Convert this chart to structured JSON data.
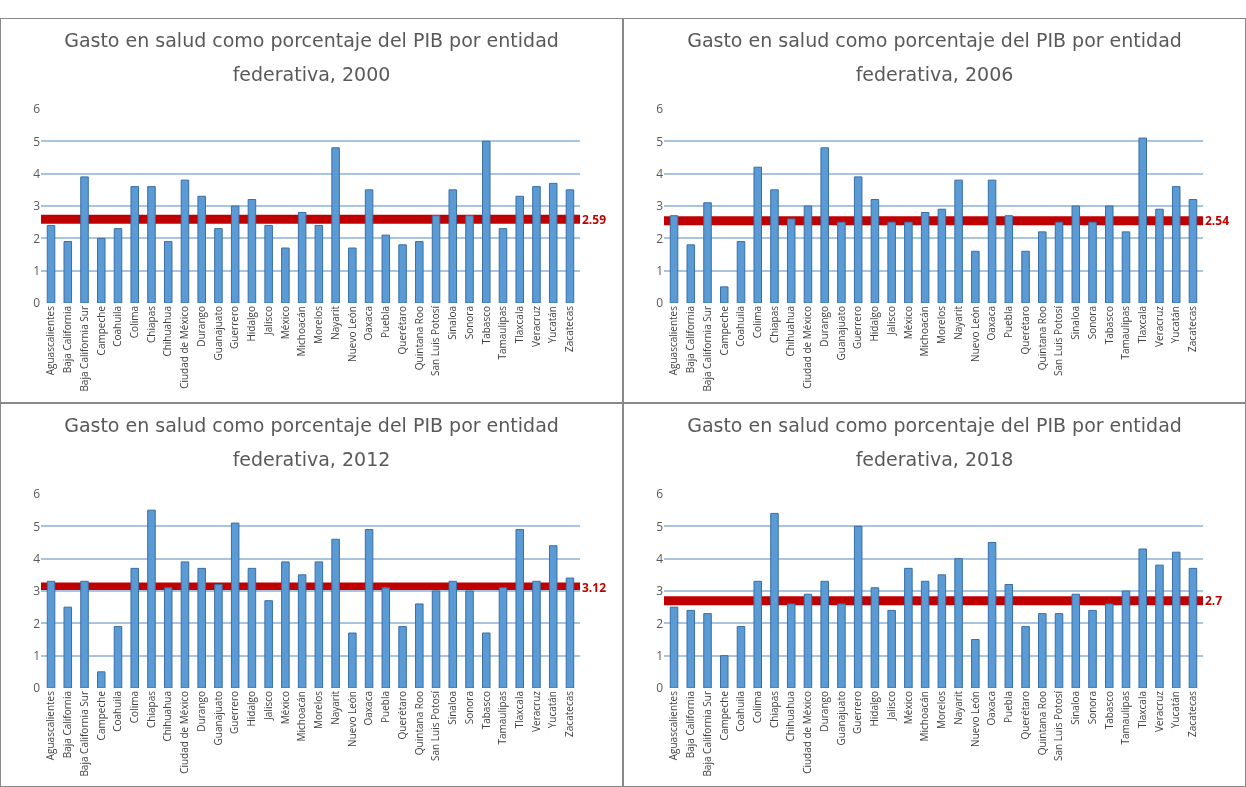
{
  "chart_data": [
    {
      "type": "bar",
      "title": "Gasto en salud como porcentaje del PIB por entidad federativa, 2000",
      "categories": [
        "Aguascalientes",
        "Baja California",
        "Baja California Sur",
        "Campeche",
        "Coahuila",
        "Colima",
        "Chiapas",
        "Chihuahua",
        "Ciudad de México",
        "Durango",
        "Guanajuato",
        "Guerrero",
        "Hidalgo",
        "Jalisco",
        "México",
        "Michoacán",
        "Morelos",
        "Nayarit",
        "Nuevo León",
        "Oaxaca",
        "Puebla",
        "Querétaro",
        "Quintana Roo",
        "San Luis Potosí",
        "Sinaloa",
        "Sonora",
        "Tabasco",
        "Tamaulipas",
        "Tlaxcala",
        "Veracruz",
        "Yucatán",
        "Zacatecas"
      ],
      "values": [
        2.4,
        1.9,
        3.9,
        2.0,
        2.3,
        3.6,
        3.6,
        1.9,
        3.8,
        3.3,
        2.3,
        3.0,
        3.2,
        2.4,
        1.7,
        2.8,
        2.4,
        4.8,
        1.7,
        3.5,
        2.1,
        1.8,
        1.9,
        2.7,
        3.5,
        2.7,
        5.0,
        2.3,
        3.3,
        3.6,
        3.7,
        3.5
      ],
      "color": "#5b9bd5",
      "ylim": [
        0,
        6
      ],
      "yticks": [
        0,
        1,
        2,
        3,
        4,
        5,
        6
      ],
      "grid": "y",
      "ref_lines": [
        {
          "axis": "y",
          "value": 2.59,
          "label": "2.59",
          "color": "#c00000"
        }
      ]
    },
    {
      "type": "bar",
      "title": "Gasto en salud como porcentaje del PIB por entidad federativa, 2006",
      "categories": [
        "Aguascalientes",
        "Baja California",
        "Baja California Sur",
        "Campeche",
        "Coahuila",
        "Colima",
        "Chiapas",
        "Chihuahua",
        "Ciudad de México",
        "Durango",
        "Guanajuato",
        "Guerrero",
        "Hidalgo",
        "Jalisco",
        "México",
        "Michoacán",
        "Morelos",
        "Nayarit",
        "Nuevo León",
        "Oaxaca",
        "Puebla",
        "Querétaro",
        "Quintana Roo",
        "San Luis Potosí",
        "Sinaloa",
        "Sonora",
        "Tabasco",
        "Tamaulipas",
        "Tlaxcala",
        "Veracruz",
        "Yucatán",
        "Zacatecas"
      ],
      "values": [
        2.7,
        1.8,
        3.1,
        0.5,
        1.9,
        4.2,
        3.5,
        2.6,
        3.0,
        4.8,
        2.5,
        3.9,
        3.2,
        2.5,
        2.5,
        2.8,
        2.9,
        3.8,
        1.6,
        3.8,
        2.7,
        1.6,
        2.2,
        2.5,
        3.0,
        2.5,
        3.0,
        2.2,
        5.1,
        2.9,
        3.6,
        3.2
      ],
      "color": "#5b9bd5",
      "ylim": [
        0,
        6
      ],
      "yticks": [
        0,
        1,
        2,
        3,
        4,
        5,
        6
      ],
      "grid": "y",
      "ref_lines": [
        {
          "axis": "y",
          "value": 2.54,
          "label": "2.54",
          "color": "#c00000"
        }
      ]
    },
    {
      "type": "bar",
      "title": "Gasto en salud como porcentaje del PIB por entidad federativa, 2012",
      "categories": [
        "Aguascalientes",
        "Baja California",
        "Baja California Sur",
        "Campeche",
        "Coahuila",
        "Colima",
        "Chiapas",
        "Chihuahua",
        "Ciudad de México",
        "Durango",
        "Guanajuato",
        "Guerrero",
        "Hidalgo",
        "Jalisco",
        "México",
        "Michoacán",
        "Morelos",
        "Nayarit",
        "Nuevo León",
        "Oaxaca",
        "Puebla",
        "Querétaro",
        "Quintana Roo",
        "San Luis Potosí",
        "Sinaloa",
        "Sonora",
        "Tabasco",
        "Tamaulipas",
        "Tlaxcala",
        "Veracruz",
        "Yucatán",
        "Zacatecas"
      ],
      "values": [
        3.3,
        2.5,
        3.3,
        0.5,
        1.9,
        3.7,
        5.5,
        3.1,
        3.9,
        3.7,
        3.2,
        5.1,
        3.7,
        2.7,
        3.9,
        3.5,
        3.9,
        4.6,
        1.7,
        4.9,
        3.1,
        1.9,
        2.6,
        3.0,
        3.3,
        3.0,
        1.7,
        3.1,
        4.9,
        3.3,
        4.4,
        3.4
      ],
      "color": "#5b9bd5",
      "ylim": [
        0,
        6
      ],
      "yticks": [
        0,
        1,
        2,
        3,
        4,
        5,
        6
      ],
      "grid": "y",
      "ref_lines": [
        {
          "axis": "y",
          "value": 3.12,
          "label": "3.12",
          "color": "#c00000"
        }
      ]
    },
    {
      "type": "bar",
      "title": "Gasto en salud como porcentaje del PIB por entidad federativa, 2018",
      "categories": [
        "Aguascalientes",
        "Baja California",
        "Baja California Sur",
        "Campeche",
        "Coahuila",
        "Colima",
        "Chiapas",
        "Chihuahua",
        "Ciudad de México",
        "Durango",
        "Guanajuato",
        "Guerrero",
        "Hidalgo",
        "Jalisco",
        "México",
        "Michoacán",
        "Morelos",
        "Nayarit",
        "Nuevo León",
        "Oaxaca",
        "Puebla",
        "Querétaro",
        "Quintana Roo",
        "San Luis Potosí",
        "Sinaloa",
        "Sonora",
        "Tabasco",
        "Tamaulipas",
        "Tlaxcala",
        "Veracruz",
        "Yucatán",
        "Zacatecas"
      ],
      "values": [
        2.5,
        2.4,
        2.3,
        1.0,
        1.9,
        3.3,
        5.4,
        2.6,
        2.9,
        3.3,
        2.6,
        5.0,
        3.1,
        2.4,
        3.7,
        3.3,
        3.5,
        4.0,
        1.5,
        4.5,
        3.2,
        1.9,
        2.3,
        2.3,
        2.9,
        2.4,
        2.6,
        3.0,
        4.3,
        3.8,
        4.2,
        3.7
      ],
      "color": "#5b9bd5",
      "ylim": [
        0,
        6
      ],
      "yticks": [
        0,
        1,
        2,
        3,
        4,
        5,
        6
      ],
      "grid": "y",
      "ref_lines": [
        {
          "axis": "y",
          "value": 2.7,
          "label": "2.7",
          "color": "#c00000"
        }
      ]
    }
  ]
}
